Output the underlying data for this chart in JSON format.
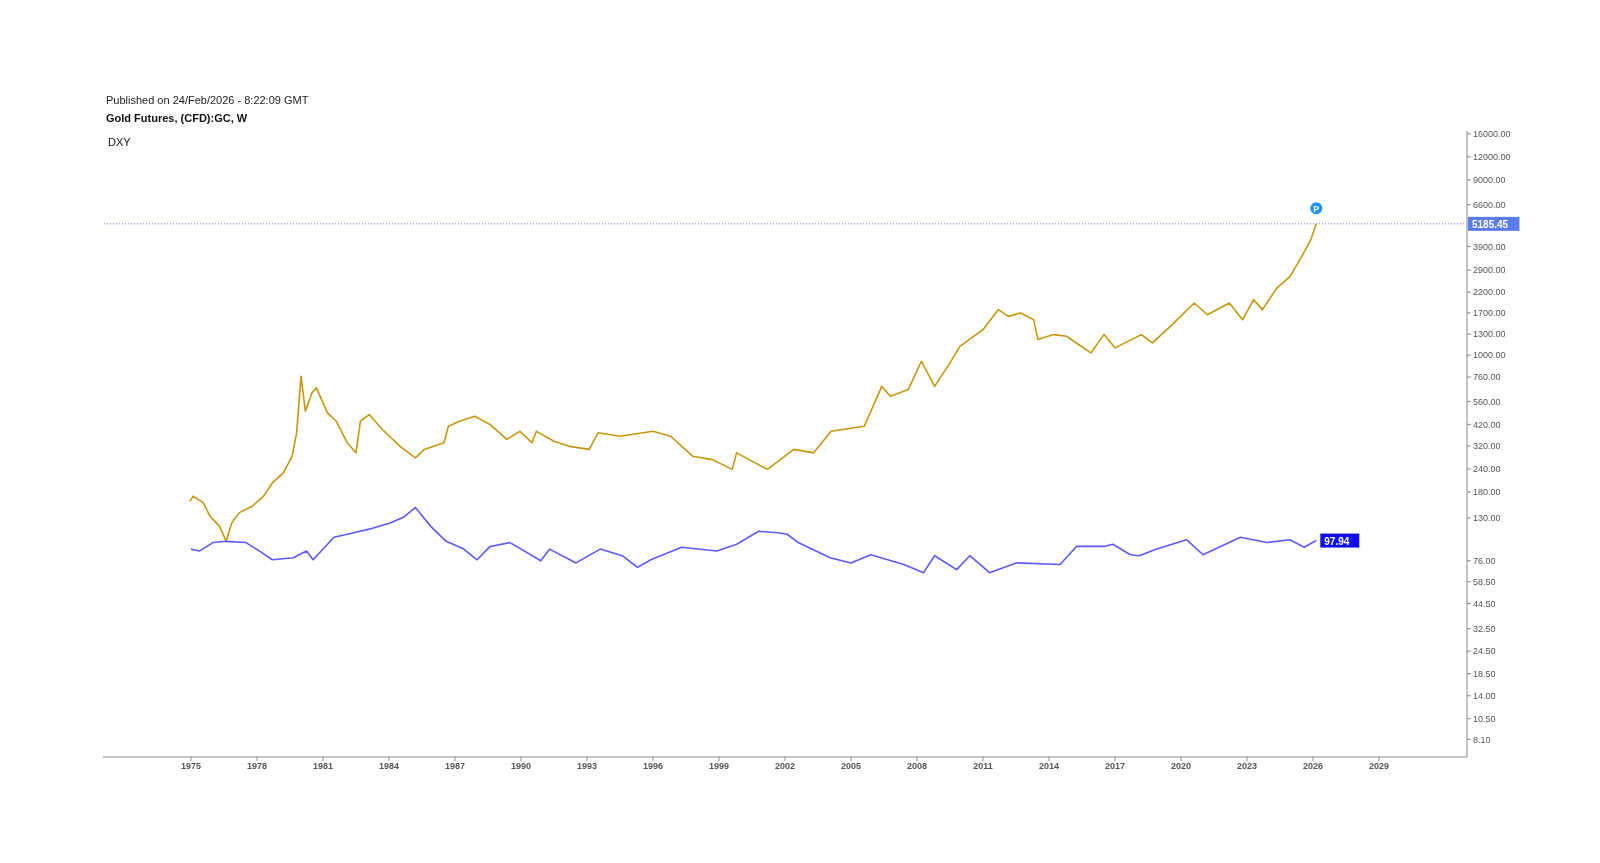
{
  "chart_data": {
    "type": "line",
    "title": "Gold Futures, (CFD):GC, W",
    "subtitle": "DXY",
    "annotations": [
      "Published on 24/Feb/2026 - 8:22:09 GMT",
      {
        "text": "P",
        "x": 2026.15,
        "y": 6300
      }
    ],
    "log": "y",
    "xlim": [
      1971,
      2033
    ],
    "ylim": [
      6.5,
      16600
    ],
    "xticks": [
      1975,
      1978,
      1981,
      1984,
      1987,
      1990,
      1993,
      1996,
      1999,
      2002,
      2005,
      2008,
      2011,
      2014,
      2017,
      2020,
      2023,
      2026,
      2029
    ],
    "yticks": [
      {
        "value": 8.1,
        "label": "8.10"
      },
      {
        "value": 10.5,
        "label": "10.50"
      },
      {
        "value": 14,
        "label": "14.00"
      },
      {
        "value": 18.5,
        "label": "18.50"
      },
      {
        "value": 24.5,
        "label": "24.50"
      },
      {
        "value": 32.5,
        "label": "32.50"
      },
      {
        "value": 44.5,
        "label": "44.50"
      },
      {
        "value": 58.5,
        "label": "58.50"
      },
      {
        "value": 76,
        "label": "76.00"
      },
      {
        "value": 130,
        "label": "130.00"
      },
      {
        "value": 180,
        "label": "180.00"
      },
      {
        "value": 240,
        "label": "240.00"
      },
      {
        "value": 320,
        "label": "320.00"
      },
      {
        "value": 420,
        "label": "420.00"
      },
      {
        "value": 560,
        "label": "560.00"
      },
      {
        "value": 760,
        "label": "760.00"
      },
      {
        "value": 1000,
        "label": "1000.00"
      },
      {
        "value": 1300,
        "label": "1300.00"
      },
      {
        "value": 1700,
        "label": "1700.00"
      },
      {
        "value": 2200,
        "label": "2200.00"
      },
      {
        "value": 2900,
        "label": "2900.00"
      },
      {
        "value": 3900,
        "label": "3900.00"
      },
      {
        "value": 6600,
        "label": "6600.00"
      },
      {
        "value": 9000,
        "label": "9000.00"
      },
      {
        "value": 12000,
        "label": "12000.00"
      },
      {
        "value": 16000,
        "label": "16000.00"
      }
    ],
    "grid": false,
    "marker": "none",
    "line_style": "solid",
    "ref_lines": [
      {
        "axis": "y",
        "value": 5185.45,
        "label": "5185.45",
        "color": "#5b7cf0",
        "line_style": "dotted"
      }
    ],
    "series": [
      {
        "color": "#c8960c",
        "x": [
          1974.95,
          1975.1,
          1975.56,
          1975.86,
          1976.3,
          1976.6,
          1976.85,
          1977.2,
          1977.8,
          1978.3,
          1978.7,
          1979.2,
          1979.6,
          1979.8,
          1980.0,
          1980.2,
          1980.5,
          1980.7,
          1981.2,
          1981.6,
          1982.1,
          1982.5,
          1982.7,
          1983.1,
          1983.7,
          1984.5,
          1985.2,
          1985.6,
          1986.5,
          1986.7,
          1987.2,
          1987.9,
          1988.6,
          1989.35,
          1989.95,
          1990.5,
          1990.7,
          1991.5,
          1992.2,
          1993.1,
          1993.5,
          1994.5,
          1996.0,
          1996.8,
          1997.8,
          1998.7,
          1999.6,
          1999.8,
          2001.2,
          2002.4,
          2003.3,
          2004.1,
          2005.6,
          2006.4,
          2006.8,
          2007.6,
          2008.2,
          2008.8,
          2009.5,
          2009.95,
          2011.0,
          2011.7,
          2012.15,
          2012.7,
          2013.3,
          2013.5,
          2014.2,
          2014.8,
          2015.9,
          2016.5,
          2017.0,
          2018.2,
          2018.7,
          2019.6,
          2020.6,
          2021.2,
          2022.2,
          2022.8,
          2023.3,
          2023.7,
          2024.35,
          2024.95,
          2025.4,
          2025.9,
          2026.15
        ],
        "values": [
          160,
          171,
          157,
          133,
          117,
          97,
          122,
          139,
          151,
          171,
          202,
          229,
          282,
          378,
          767,
          496,
          624,
          664,
          485,
          437,
          334,
          294,
          437,
          475,
          394,
          319,
          276,
          307,
          334,
          410,
          437,
          465,
          419,
          348,
          385,
          334,
          385,
          340,
          319,
          307,
          378,
          362,
          385,
          362,
          282,
          270,
          239,
          294,
          239,
          307,
          294,
          385,
          410,
          676,
          597,
          650,
          927,
          676,
          908,
          1117,
          1377,
          1770,
          1626,
          1698,
          1560,
          1216,
          1294,
          1268,
          1028,
          1294,
          1096,
          1294,
          1167,
          1466,
          1923,
          1660,
          1923,
          1560,
          2004,
          1770,
          2317,
          2679,
          3304,
          4245,
          5185.45
        ]
      },
      {
        "color": "#5a5aff",
        "x": [
          1975.0,
          1975.4,
          1976.0,
          1976.6,
          1977.5,
          1978.1,
          1978.7,
          1979.65,
          1980.25,
          1980.55,
          1981.5,
          1982.4,
          1983.1,
          1984.05,
          1984.65,
          1985.2,
          1985.9,
          1986.6,
          1987.4,
          1988.0,
          1988.6,
          1989.5,
          1990.9,
          1991.3,
          1992.5,
          1993.6,
          1994.6,
          1995.3,
          1995.9,
          1997.3,
          1998.9,
          1999.8,
          2000.8,
          2001.65,
          2002.1,
          2002.6,
          2004.05,
          2005.0,
          2005.9,
          2007.4,
          2008.3,
          2008.8,
          2009.8,
          2010.4,
          2011.3,
          2012.5,
          2014.5,
          2015.25,
          2016.5,
          2016.9,
          2017.7,
          2018.1,
          2018.9,
          2020.25,
          2021.0,
          2022.7,
          2023.9,
          2024.95,
          2025.6,
          2026.15
        ],
        "values": [
          88,
          86,
          95.5,
          97,
          95.5,
          86,
          77,
          79,
          86,
          77,
          102,
          108,
          113,
          122,
          131,
          148,
          117,
          97,
          88,
          77,
          91,
          95.5,
          76,
          88,
          74,
          88,
          81,
          70,
          77,
          90,
          86,
          93.5,
          110,
          108,
          106,
          95.5,
          79,
          74,
          82,
          72.6,
          65.5,
          81,
          68,
          81,
          65.5,
          74,
          72.6,
          91,
          91,
          93.5,
          82,
          81,
          88,
          99,
          82,
          102,
          95.5,
          99,
          90,
          97.94
        ],
        "value_labels": [
          null,
          null,
          null,
          null,
          null,
          null,
          null,
          null,
          null,
          null,
          null,
          null,
          null,
          null,
          null,
          null,
          null,
          null,
          null,
          null,
          null,
          null,
          null,
          null,
          null,
          null,
          null,
          null,
          null,
          null,
          null,
          null,
          null,
          null,
          null,
          null,
          null,
          null,
          null,
          null,
          null,
          null,
          null,
          null,
          null,
          null,
          null,
          null,
          null,
          null,
          null,
          null,
          null,
          null,
          null,
          null,
          null,
          null,
          null,
          "97.94"
        ]
      }
    ]
  }
}
